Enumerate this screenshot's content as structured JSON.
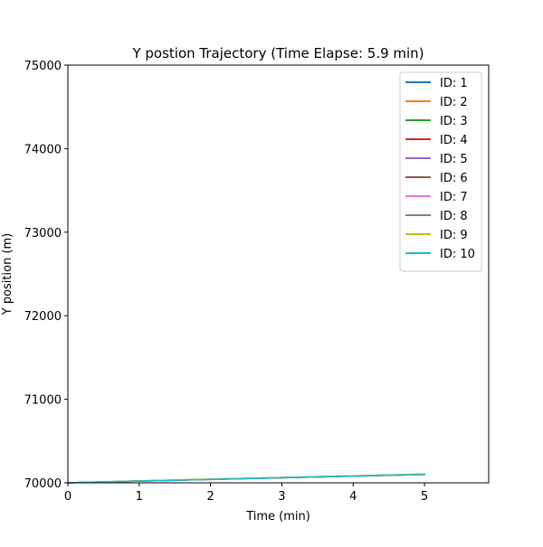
{
  "chart_data": {
    "type": "line",
    "title": "Y postion Trajectory (Time Elapse: 5.9 min)",
    "xlabel": "Time (min)",
    "ylabel": "Y position (m)",
    "xlim": [
      0,
      5.9
    ],
    "ylim": [
      70000,
      75000
    ],
    "xticks": [
      0,
      1,
      2,
      3,
      4,
      5
    ],
    "yticks": [
      70000,
      71000,
      72000,
      73000,
      74000,
      75000
    ],
    "grid": false,
    "legend_position": "top-right",
    "x": [
      0,
      0.25,
      0.5,
      0.75,
      1.0,
      1.25,
      1.5,
      1.75,
      2.0,
      2.25,
      2.5,
      2.75,
      3.0,
      3.25,
      3.5,
      3.75,
      4.0,
      4.25,
      4.5,
      4.75,
      5.0
    ],
    "series": [
      {
        "name": "ID: 1",
        "color": "#1f77b4",
        "values": [
          70000,
          70006,
          70010,
          70016,
          70021,
          70026,
          70031,
          70036,
          70041,
          70046,
          70051,
          70056,
          70061,
          70066,
          70071,
          70076,
          70081,
          70086,
          70091,
          70095,
          70100
        ]
      },
      {
        "name": "ID: 2",
        "color": "#ff7f0e",
        "values": [
          70000,
          70005,
          70011,
          70015,
          70020,
          70025,
          70030,
          70036,
          70040,
          70045,
          70050,
          70055,
          70060,
          70065,
          70070,
          70075,
          70080,
          70085,
          70090,
          70094,
          70099
        ]
      },
      {
        "name": "ID: 3",
        "color": "#2ca02c",
        "values": [
          70000,
          70006,
          70012,
          70017,
          70022,
          70027,
          70033,
          70038,
          70043,
          70048,
          70053,
          70058,
          70063,
          70068,
          70073,
          70078,
          70083,
          70088,
          70093,
          70098,
          70103
        ]
      },
      {
        "name": "ID: 4",
        "color": "#d62728",
        "values": [
          70000,
          70005,
          70010,
          70015,
          70020,
          70025,
          70030,
          70035,
          70040,
          70045,
          70050,
          70055,
          70060,
          70065,
          70070,
          70075,
          70080,
          70084,
          70089,
          70094,
          70098
        ]
      },
      {
        "name": "ID: 5",
        "color": "#9467bd",
        "values": [
          70000,
          70006,
          70011,
          70016,
          70021,
          70027,
          70032,
          70037,
          70042,
          70047,
          70052,
          70057,
          70062,
          70067,
          70072,
          70077,
          70082,
          70087,
          70092,
          70097,
          70102
        ]
      },
      {
        "name": "ID: 6",
        "color": "#8c564b",
        "values": [
          70000,
          70005,
          70010,
          70015,
          70021,
          70026,
          70031,
          70036,
          70041,
          70046,
          70051,
          70056,
          70061,
          70066,
          70071,
          70076,
          70081,
          70086,
          70091,
          70096,
          70100
        ]
      },
      {
        "name": "ID: 7",
        "color": "#e377c2",
        "values": [
          70000,
          70006,
          70011,
          70017,
          70022,
          70027,
          70032,
          70037,
          70042,
          70048,
          70053,
          70058,
          70063,
          70068,
          70073,
          70078,
          70083,
          70088,
          70093,
          70098,
          70104
        ]
      },
      {
        "name": "ID: 8",
        "color": "#7f7f7f",
        "values": [
          70000,
          70005,
          70011,
          70016,
          70021,
          70026,
          70031,
          70036,
          70041,
          70046,
          70051,
          70056,
          70061,
          70066,
          70071,
          70076,
          70081,
          70086,
          70091,
          70096,
          70101
        ]
      },
      {
        "name": "ID: 9",
        "color": "#bcbd22",
        "values": [
          70000,
          70006,
          70012,
          70018,
          70023,
          70028,
          70034,
          70039,
          70044,
          70049,
          70054,
          70059,
          70064,
          70069,
          70074,
          70079,
          70084,
          70089,
          70095,
          70100,
          70105
        ]
      },
      {
        "name": "ID: 10",
        "color": "#17becf",
        "values": [
          70000,
          70005,
          70010,
          70016,
          70021,
          70026,
          70031,
          70036,
          70041,
          70046,
          70051,
          70056,
          70061,
          70066,
          70071,
          70076,
          70080,
          70085,
          70090,
          70095,
          70099
        ]
      }
    ]
  }
}
